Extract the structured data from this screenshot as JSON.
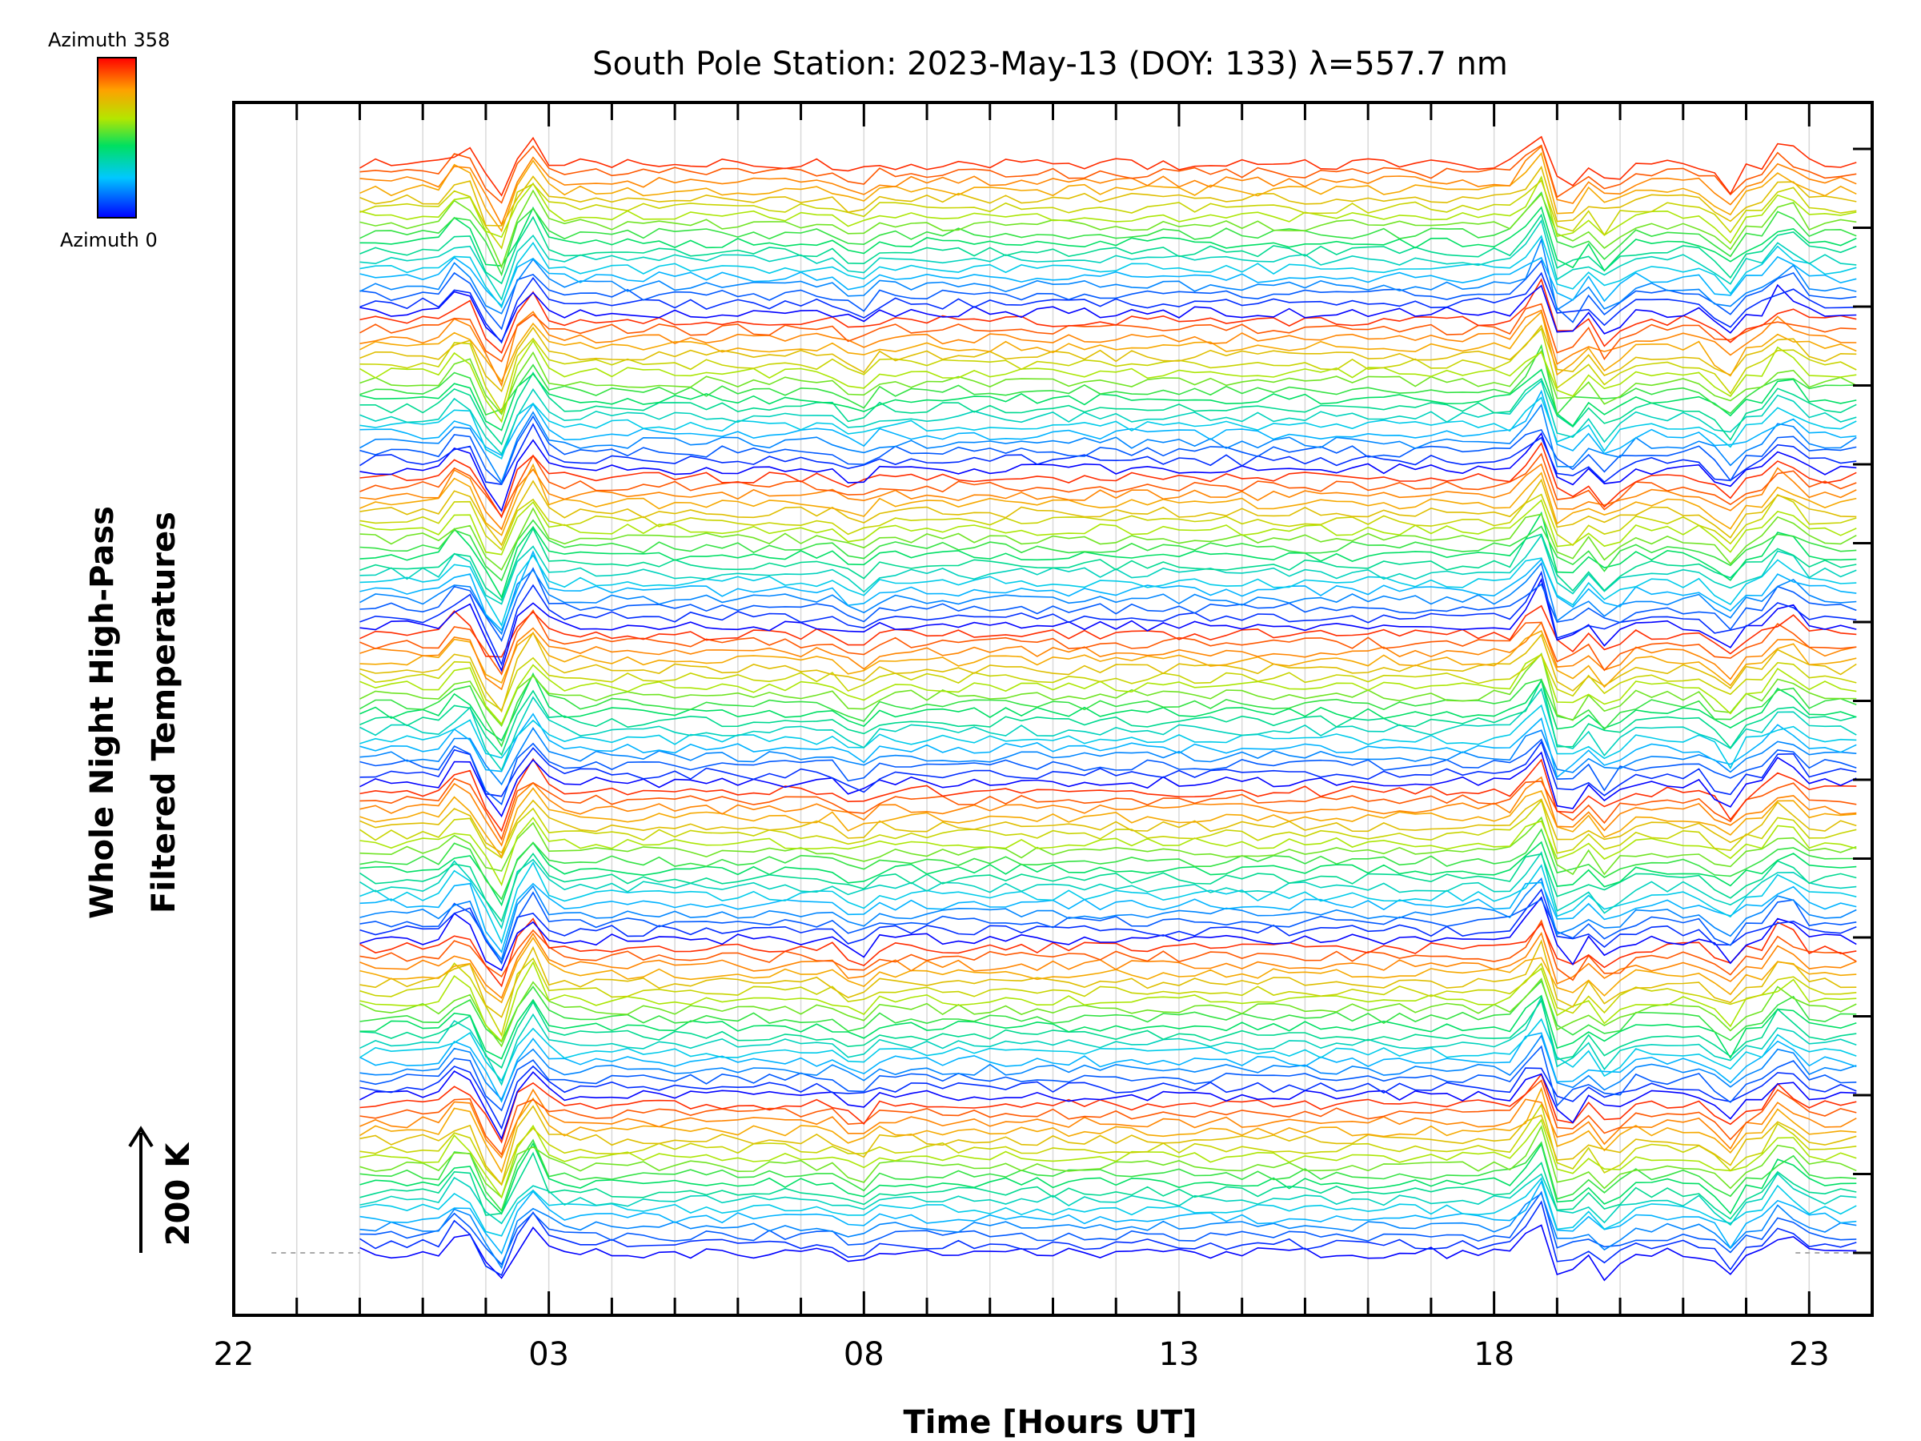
{
  "chart_data": {
    "type": "line",
    "title": "South Pole Station: 2023-May-13 (DOY: 133) λ=557.7 nm",
    "xlabel": "Time [Hours UT]",
    "ylabel_line1": "Whole Night High-Pass",
    "ylabel_line2": "Filtered Temperatures",
    "scale_label": "200 K",
    "x_domain": [
      22,
      48
    ],
    "x_data_range": [
      24,
      47.8
    ],
    "x_ticks": [
      {
        "value": 22,
        "label": "22"
      },
      {
        "value": 27,
        "label": "03"
      },
      {
        "value": 32,
        "label": "08"
      },
      {
        "value": 37,
        "label": "13"
      },
      {
        "value": 42,
        "label": "18"
      },
      {
        "value": 47,
        "label": "23"
      }
    ],
    "colorbar": {
      "top_label": "Azimuth 358",
      "bottom_label": "Azimuth 0",
      "min": 0,
      "max": 358
    },
    "traces_per_band": 18,
    "band_count": 7,
    "band_azimuth_spacing": 19.9,
    "events": [
      {
        "time": 25.6,
        "amplitude": -1.0
      },
      {
        "time": 26.2,
        "amplitude": 1.6
      },
      {
        "time": 26.7,
        "amplitude": -1.3
      },
      {
        "time": 31.9,
        "amplitude": 0.6
      },
      {
        "time": 42.7,
        "amplitude": -1.5
      },
      {
        "time": 43.1,
        "amplitude": 1.2
      },
      {
        "time": 43.8,
        "amplitude": 0.9
      },
      {
        "time": 45.7,
        "amplitude": 1.0
      },
      {
        "time": 46.6,
        "amplitude": -1.0
      }
    ],
    "colors": {
      "grid": "#d9d9d9",
      "axis": "#000000",
      "baseline": "#aaaaaa"
    }
  }
}
